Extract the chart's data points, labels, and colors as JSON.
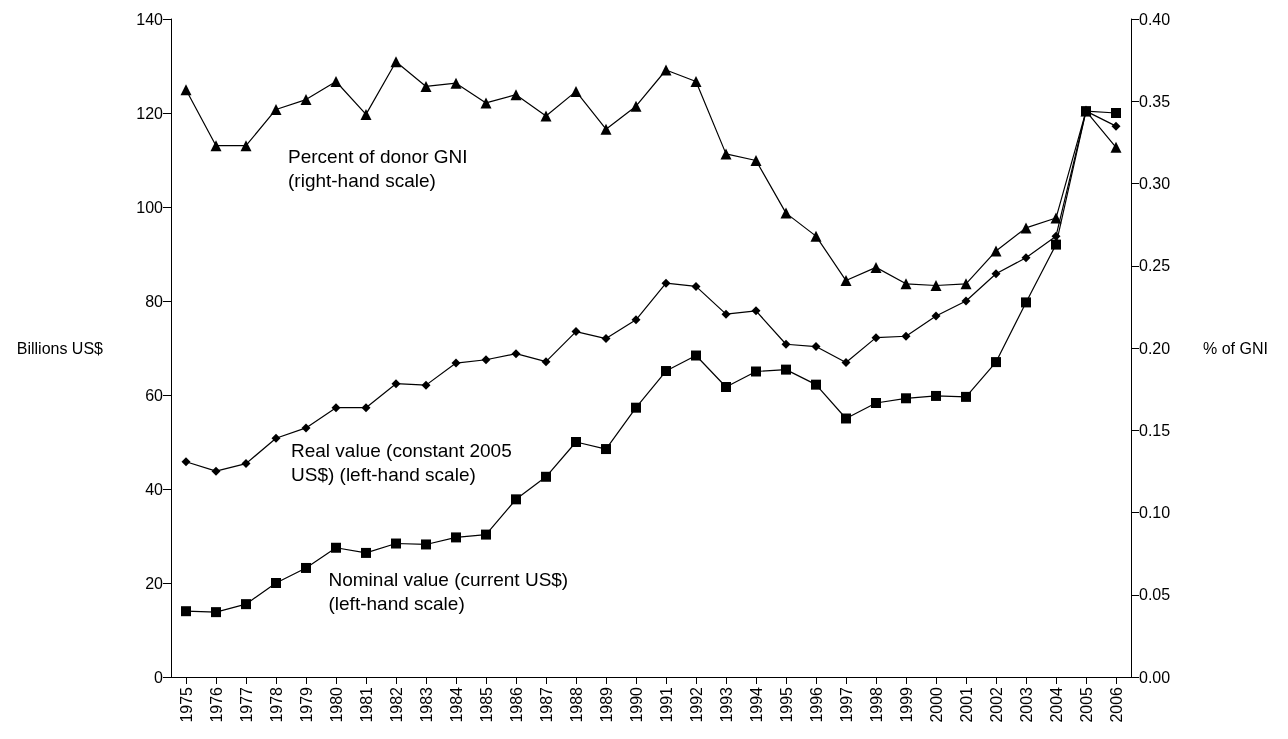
{
  "chart_data": {
    "type": "line",
    "ylabel": "Billions US$",
    "y2label": "% of GNI",
    "categories": [
      "1975",
      "1976",
      "1977",
      "1978",
      "1979",
      "1980",
      "1981",
      "1982",
      "1983",
      "1984",
      "1985",
      "1986",
      "1987",
      "1988",
      "1989",
      "1990",
      "1991",
      "1992",
      "1993",
      "1994",
      "1995",
      "1996",
      "1997",
      "1998",
      "1999",
      "2000",
      "2001",
      "2002",
      "2003",
      "2004",
      "2005",
      "2006"
    ],
    "series": [
      {
        "name": "Percent of donor GNI\n(right-hand scale)",
        "color": "#000000",
        "axis": "y2",
        "marker": "triangle",
        "values": [
          0.357,
          0.323,
          0.323,
          0.345,
          0.351,
          0.362,
          0.342,
          0.374,
          0.359,
          0.361,
          0.349,
          0.354,
          0.341,
          0.356,
          0.333,
          0.347,
          0.369,
          0.362,
          0.318,
          0.314,
          0.282,
          0.268,
          0.241,
          0.249,
          0.239,
          0.238,
          0.239,
          0.259,
          0.273,
          0.279,
          0.344,
          0.322
        ]
      },
      {
        "name": "Real value (constant 2005\nUS$) (left-hand scale)",
        "color": "#000000",
        "marker": "diamond",
        "values": [
          45.8,
          43.8,
          45.4,
          50.8,
          53,
          57.3,
          57.3,
          62.4,
          62.1,
          66.8,
          67.5,
          68.8,
          67.1,
          73.5,
          72,
          76,
          83.8,
          83.1,
          77.2,
          77.9,
          70.8,
          70.3,
          66.9,
          72.2,
          72.5,
          76.8,
          80,
          85.8,
          89.2,
          93.8,
          120.4,
          117.2
        ]
      },
      {
        "name": "Nominal value (current US$)\n(left-hand scale)",
        "color": "#000000",
        "marker": "square",
        "values": [
          14,
          13.8,
          15.5,
          20,
          23.2,
          27.5,
          26.4,
          28.4,
          28.2,
          29.7,
          30.3,
          37.8,
          42.6,
          50,
          48.5,
          57.3,
          65.1,
          68.4,
          61.7,
          65,
          65.4,
          62.2,
          55,
          58.3,
          59.3,
          59.8,
          59.6,
          67,
          79.7,
          92,
          120.4,
          120
        ]
      }
    ],
    "ylim": [
      0,
      140
    ],
    "yticks": [
      0,
      20,
      40,
      60,
      80,
      100,
      120,
      140
    ],
    "y2lim": [
      0,
      0.4
    ],
    "y2ticks": [
      {
        "value": 0,
        "label": "0.00"
      },
      {
        "value": 0.05,
        "label": "0.05"
      },
      {
        "value": 0.1,
        "label": "0.10"
      },
      {
        "value": 0.15,
        "label": "0.15"
      },
      {
        "value": 0.2,
        "label": "0.20"
      },
      {
        "value": 0.25,
        "label": "0.25"
      },
      {
        "value": 0.3,
        "label": "0.30"
      },
      {
        "value": 0.35,
        "label": "0.35"
      },
      {
        "value": 0.4,
        "label": "0.40"
      }
    ],
    "grid": false,
    "legend": false,
    "line_style": "solid"
  }
}
